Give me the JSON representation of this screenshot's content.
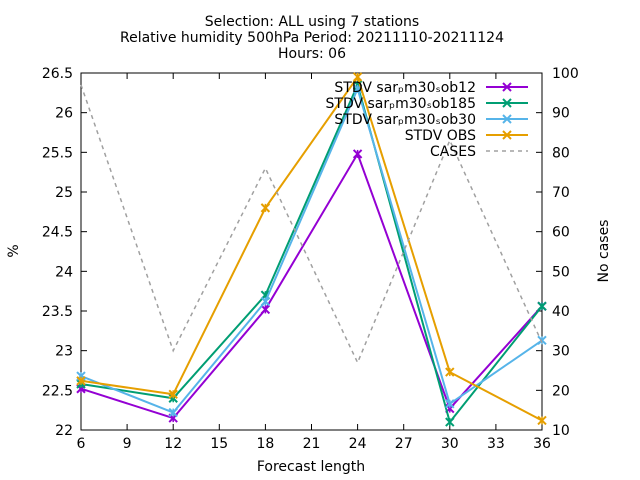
{
  "chart_data": {
    "type": "line",
    "title_lines": [
      "Selection: ALL using      7 stations",
      "Relative humidity 500hPa   Period: 20211110-20211124",
      "Hours: 06"
    ],
    "xlabel": "Forecast length",
    "ylabel": "%",
    "y2label": "No cases",
    "x_ticks": [
      6,
      9,
      12,
      15,
      18,
      21,
      24,
      27,
      30,
      33,
      36
    ],
    "y_ticks": [
      22,
      22.5,
      23,
      23.5,
      24,
      24.5,
      25,
      25.5,
      26,
      26.5
    ],
    "y_tick_labels": [
      "22",
      "22.5",
      "23",
      "23.5",
      "24",
      "24.5",
      "25",
      "25.5",
      "26",
      "26.5"
    ],
    "y2_ticks": [
      10,
      20,
      30,
      40,
      50,
      60,
      70,
      80,
      90,
      100
    ],
    "xlim": [
      6,
      36
    ],
    "ylim": [
      22,
      26.5
    ],
    "y2lim": [
      10,
      100
    ],
    "grid": false,
    "legend_position": "top-right",
    "series": [
      {
        "name": "STDV sar_m30_ob12",
        "legend": "STDV sarₚm30ₛob12",
        "color": "#9400d3",
        "axis": "y",
        "marker": "x",
        "x": [
          6,
          12,
          18,
          24,
          30,
          36
        ],
        "y": [
          22.52,
          22.15,
          23.52,
          25.48,
          22.27,
          23.56
        ]
      },
      {
        "name": "STDV sar_m30_ob185",
        "legend": "STDV sarₚm30ₛob185",
        "color": "#009e73",
        "axis": "y",
        "marker": "x",
        "x": [
          6,
          12,
          18,
          24,
          30,
          36
        ],
        "y": [
          22.58,
          22.4,
          23.7,
          26.35,
          22.1,
          23.56
        ]
      },
      {
        "name": "STDV sar_m30_ob30",
        "legend": "STDV sarₚm30ₛob30",
        "color": "#56b4e9",
        "axis": "y",
        "marker": "x",
        "x": [
          6,
          12,
          18,
          24,
          30,
          36
        ],
        "y": [
          22.68,
          22.22,
          23.62,
          26.3,
          22.33,
          23.13
        ]
      },
      {
        "name": "STDV OBS",
        "legend": "STDV OBS",
        "color": "#e69f00",
        "axis": "y",
        "marker": "x",
        "x": [
          6,
          12,
          18,
          24,
          30,
          36
        ],
        "y": [
          22.62,
          22.45,
          24.8,
          26.45,
          22.73,
          22.12
        ]
      },
      {
        "name": "CASES",
        "legend": "CASES",
        "color": "#a0a0a0",
        "axis": "y2",
        "marker": "none",
        "dashed": true,
        "x": [
          6,
          12,
          18,
          24,
          30,
          36
        ],
        "y": [
          97,
          30,
          76,
          27,
          83,
          32
        ]
      }
    ]
  }
}
